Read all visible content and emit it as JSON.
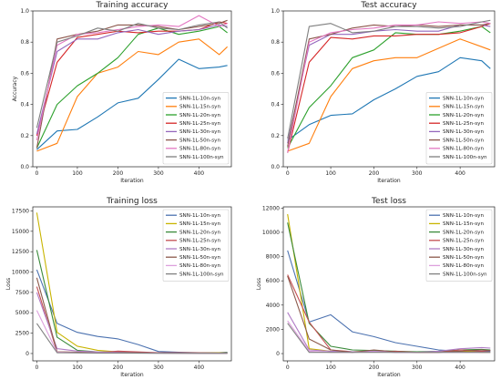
{
  "colors": [
    "#1f77b4",
    "#ff7f0e",
    "#2ca02c",
    "#d62728",
    "#9467bd",
    "#8c564b",
    "#e377c2",
    "#7f7f7f"
  ],
  "loss_colors": [
    "#4c72b0",
    "#c8b400",
    "#3a8a3a",
    "#c44e52",
    "#b07cc6",
    "#8c5a4b",
    "#dda0dd",
    "#808080"
  ],
  "legend_names": [
    "SNN-1L-10n-syn",
    "SNN-1L-15n-syn",
    "SNN-1L-20n-syn",
    "SNN-1L-25n-syn",
    "SNN-1L-30n-syn",
    "SNN-1L-50n-syn",
    "SNN-1L-80n-syn",
    "SNN-1L-100n-syn"
  ],
  "chart_data": [
    {
      "type": "line",
      "title": "Training accuracy",
      "xlabel": "Iteration",
      "ylabel": "Accuracy",
      "xlim": [
        -10,
        480
      ],
      "ylim": [
        0,
        1.0
      ],
      "xticks": [
        0,
        100,
        200,
        300,
        400
      ],
      "yticks": [
        0.0,
        0.2,
        0.4,
        0.6,
        0.8,
        1.0
      ],
      "ytick_labels": [
        "0.0",
        "0.2",
        "0.4",
        "0.6",
        "0.8",
        "1.0"
      ],
      "legend_position": "lower-right",
      "x": [
        0,
        50,
        100,
        150,
        200,
        250,
        300,
        350,
        400,
        450,
        470
      ],
      "series": [
        {
          "name": "SNN-1L-10n-syn",
          "values": [
            0.11,
            0.23,
            0.24,
            0.32,
            0.41,
            0.44,
            0.56,
            0.69,
            0.63,
            0.64,
            0.65
          ]
        },
        {
          "name": "SNN-1L-15n-syn",
          "values": [
            0.1,
            0.15,
            0.45,
            0.6,
            0.64,
            0.74,
            0.72,
            0.8,
            0.82,
            0.72,
            0.77
          ]
        },
        {
          "name": "SNN-1L-20n-syn",
          "values": [
            0.12,
            0.4,
            0.52,
            0.6,
            0.7,
            0.85,
            0.89,
            0.85,
            0.87,
            0.9,
            0.86
          ]
        },
        {
          "name": "SNN-1L-25n-syn",
          "values": [
            0.2,
            0.67,
            0.83,
            0.85,
            0.87,
            0.86,
            0.87,
            0.87,
            0.88,
            0.93,
            0.92
          ]
        },
        {
          "name": "SNN-1L-30n-syn",
          "values": [
            0.21,
            0.74,
            0.82,
            0.82,
            0.86,
            0.88,
            0.85,
            0.87,
            0.88,
            0.91,
            0.9
          ]
        },
        {
          "name": "SNN-1L-50n-syn",
          "values": [
            0.12,
            0.82,
            0.85,
            0.87,
            0.91,
            0.91,
            0.9,
            0.88,
            0.9,
            0.92,
            0.94
          ]
        },
        {
          "name": "SNN-1L-80n-syn",
          "values": [
            0.17,
            0.78,
            0.85,
            0.86,
            0.88,
            0.9,
            0.91,
            0.9,
            0.97,
            0.9,
            0.92
          ]
        },
        {
          "name": "SNN-1L-100n-syn",
          "values": [
            0.25,
            0.8,
            0.84,
            0.89,
            0.87,
            0.92,
            0.89,
            0.88,
            0.91,
            0.93,
            0.89
          ]
        }
      ]
    },
    {
      "type": "line",
      "title": "Test accuracy",
      "xlabel": "Iteration",
      "ylabel": "",
      "xlim": [
        -10,
        480
      ],
      "ylim": [
        0,
        1.0
      ],
      "xticks": [
        0,
        100,
        200,
        300,
        400
      ],
      "yticks": [
        0.0,
        0.2,
        0.4,
        0.6,
        0.8,
        1.0
      ],
      "ytick_labels": [
        "0.0",
        "0.2",
        "0.4",
        "0.6",
        "0.8",
        "1.0"
      ],
      "legend_position": "lower-right",
      "x": [
        0,
        50,
        100,
        150,
        200,
        250,
        300,
        350,
        400,
        450,
        470
      ],
      "series": [
        {
          "name": "SNN-1L-10n-syn",
          "values": [
            0.17,
            0.27,
            0.33,
            0.34,
            0.43,
            0.5,
            0.58,
            0.61,
            0.7,
            0.68,
            0.63
          ]
        },
        {
          "name": "SNN-1L-15n-syn",
          "values": [
            0.1,
            0.15,
            0.45,
            0.63,
            0.68,
            0.7,
            0.7,
            0.76,
            0.82,
            0.77,
            0.75
          ]
        },
        {
          "name": "SNN-1L-20n-syn",
          "values": [
            0.12,
            0.38,
            0.52,
            0.7,
            0.75,
            0.86,
            0.85,
            0.85,
            0.87,
            0.9,
            0.86
          ]
        },
        {
          "name": "SNN-1L-25n-syn",
          "values": [
            0.09,
            0.67,
            0.83,
            0.82,
            0.84,
            0.84,
            0.85,
            0.85,
            0.86,
            0.9,
            0.92
          ]
        },
        {
          "name": "SNN-1L-30n-syn",
          "values": [
            0.15,
            0.78,
            0.85,
            0.85,
            0.87,
            0.88,
            0.87,
            0.87,
            0.91,
            0.91,
            0.9
          ]
        },
        {
          "name": "SNN-1L-50n-syn",
          "values": [
            0.13,
            0.82,
            0.85,
            0.89,
            0.91,
            0.9,
            0.91,
            0.9,
            0.91,
            0.91,
            0.92
          ]
        },
        {
          "name": "SNN-1L-80n-syn",
          "values": [
            0.09,
            0.8,
            0.86,
            0.88,
            0.89,
            0.91,
            0.91,
            0.93,
            0.92,
            0.93,
            0.92
          ]
        },
        {
          "name": "SNN-1L-100n-syn",
          "values": [
            0.18,
            0.9,
            0.92,
            0.86,
            0.87,
            0.9,
            0.9,
            0.89,
            0.9,
            0.93,
            0.94
          ]
        }
      ]
    },
    {
      "type": "line",
      "title": "Training loss",
      "xlabel": "Iteration",
      "ylabel": "Loss",
      "xlim": [
        -10,
        480
      ],
      "ylim": [
        -900,
        18000
      ],
      "xticks": [
        0,
        100,
        200,
        300,
        400
      ],
      "yticks": [
        0,
        2500,
        5000,
        7500,
        10000,
        12500,
        15000,
        17500
      ],
      "ytick_labels": [
        "0",
        "2500",
        "5000",
        "7500",
        "10000",
        "12500",
        "15000",
        "17500"
      ],
      "legend_position": "upper-right",
      "x": [
        0,
        50,
        100,
        150,
        200,
        250,
        300,
        350,
        400,
        450,
        470
      ],
      "series": [
        {
          "name": "SNN-1L-10n-syn",
          "values": [
            10300,
            3700,
            2600,
            2100,
            1800,
            1100,
            250,
            150,
            100,
            100,
            150
          ]
        },
        {
          "name": "SNN-1L-15n-syn",
          "values": [
            17300,
            2600,
            900,
            400,
            200,
            100,
            100,
            80,
            60,
            100,
            100
          ]
        },
        {
          "name": "SNN-1L-20n-syn",
          "values": [
            12700,
            2000,
            400,
            200,
            150,
            100,
            80,
            50,
            60,
            60,
            80
          ]
        },
        {
          "name": "SNN-1L-25n-syn",
          "values": [
            8200,
            200,
            150,
            100,
            300,
            200,
            100,
            100,
            80,
            60,
            60
          ]
        },
        {
          "name": "SNN-1L-30n-syn",
          "values": [
            7500,
            600,
            300,
            200,
            150,
            100,
            60,
            50,
            40,
            40,
            40
          ]
        },
        {
          "name": "SNN-1L-50n-syn",
          "values": [
            9300,
            200,
            150,
            100,
            100,
            80,
            60,
            40,
            30,
            30,
            30
          ]
        },
        {
          "name": "SNN-1L-80n-syn",
          "values": [
            5300,
            150,
            100,
            80,
            60,
            50,
            40,
            30,
            30,
            30,
            30
          ]
        },
        {
          "name": "SNN-1L-100n-syn",
          "values": [
            3700,
            100,
            80,
            60,
            50,
            40,
            30,
            30,
            30,
            30,
            30
          ]
        }
      ]
    },
    {
      "type": "line",
      "title": "Test loss",
      "xlabel": "Iteration",
      "ylabel": "Loss",
      "xlim": [
        -10,
        480
      ],
      "ylim": [
        -600,
        12100
      ],
      "xticks": [
        0,
        100,
        200,
        300,
        400
      ],
      "yticks": [
        0,
        2000,
        4000,
        6000,
        8000,
        10000,
        12000
      ],
      "ytick_labels": [
        "0",
        "2000",
        "4000",
        "6000",
        "8000",
        "10000",
        "12000"
      ],
      "legend_position": "upper-right",
      "x": [
        0,
        50,
        100,
        150,
        200,
        250,
        300,
        350,
        400,
        450,
        470
      ],
      "series": [
        {
          "name": "SNN-1L-10n-syn",
          "values": [
            8500,
            2600,
            3200,
            1800,
            1400,
            900,
            600,
            300,
            200,
            200,
            200
          ]
        },
        {
          "name": "SNN-1L-15n-syn",
          "values": [
            11500,
            400,
            200,
            150,
            200,
            150,
            100,
            100,
            200,
            100,
            100
          ]
        },
        {
          "name": "SNN-1L-20n-syn",
          "values": [
            10800,
            2500,
            600,
            300,
            250,
            200,
            150,
            200,
            300,
            350,
            300
          ]
        },
        {
          "name": "SNN-1L-25n-syn",
          "values": [
            6500,
            2600,
            300,
            150,
            150,
            200,
            100,
            100,
            300,
            200,
            250
          ]
        },
        {
          "name": "SNN-1L-30n-syn",
          "values": [
            3400,
            300,
            200,
            150,
            200,
            100,
            100,
            200,
            400,
            500,
            450
          ]
        },
        {
          "name": "SNN-1L-50n-syn",
          "values": [
            6400,
            1200,
            300,
            100,
            300,
            150,
            100,
            100,
            200,
            300,
            250
          ]
        },
        {
          "name": "SNN-1L-80n-syn",
          "values": [
            2700,
            200,
            100,
            100,
            150,
            100,
            100,
            100,
            100,
            100,
            100
          ]
        },
        {
          "name": "SNN-1L-100n-syn",
          "values": [
            2500,
            100,
            100,
            100,
            100,
            100,
            100,
            100,
            100,
            100,
            100
          ]
        }
      ]
    }
  ]
}
